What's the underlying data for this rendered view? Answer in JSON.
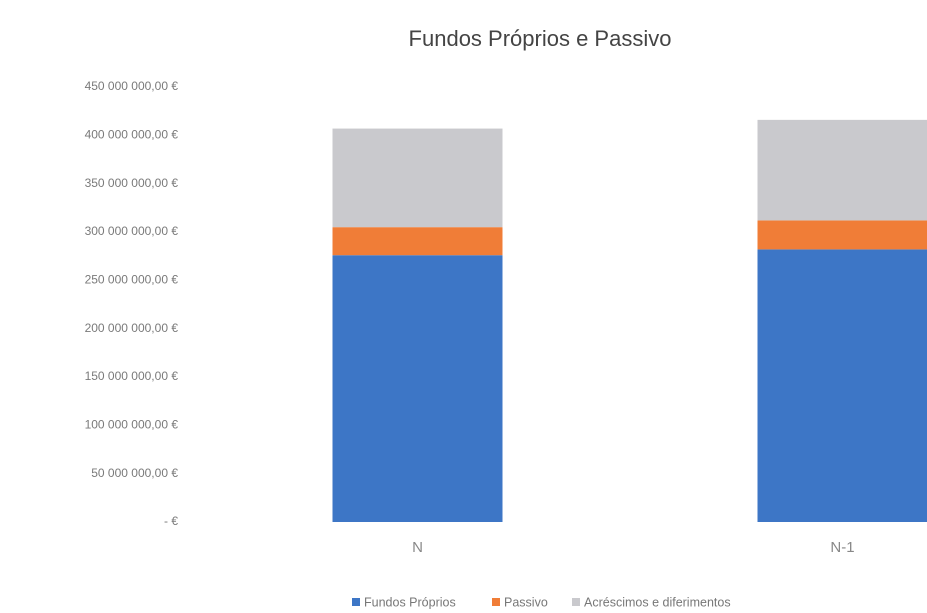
{
  "chart_data": {
    "type": "stacked_bar",
    "title": "Fundos Próprios e Passivo",
    "categories": [
      "N",
      "N-1"
    ],
    "series": [
      {
        "name": "Fundos Próprios",
        "color": "#3d76c6",
        "values": [
          276000000,
          282000000
        ]
      },
      {
        "name": "Passivo",
        "color": "#f07d37",
        "values": [
          29000000,
          30000000
        ]
      },
      {
        "name": "Acréscimos e diferimentos",
        "color": "#c9c9cd",
        "values": [
          102000000,
          104000000
        ]
      }
    ],
    "ylim": [
      0,
      450000000
    ],
    "yticks": [
      {
        "value": 0,
        "label": "- €"
      },
      {
        "value": 50000000,
        "label": "50 000 000,00 €"
      },
      {
        "value": 100000000,
        "label": "100 000 000,00 €"
      },
      {
        "value": 150000000,
        "label": "150 000 000,00 €"
      },
      {
        "value": 200000000,
        "label": "200 000 000,00 €"
      },
      {
        "value": 250000000,
        "label": "250 000 000,00 €"
      },
      {
        "value": 300000000,
        "label": "300 000 000,00 €"
      },
      {
        "value": 350000000,
        "label": "350 000 000,00 €"
      },
      {
        "value": 400000000,
        "label": "400 000 000,00 €"
      },
      {
        "value": 450000000,
        "label": "450 000 000,00 €"
      }
    ],
    "grid": false,
    "legend": "bottom"
  }
}
